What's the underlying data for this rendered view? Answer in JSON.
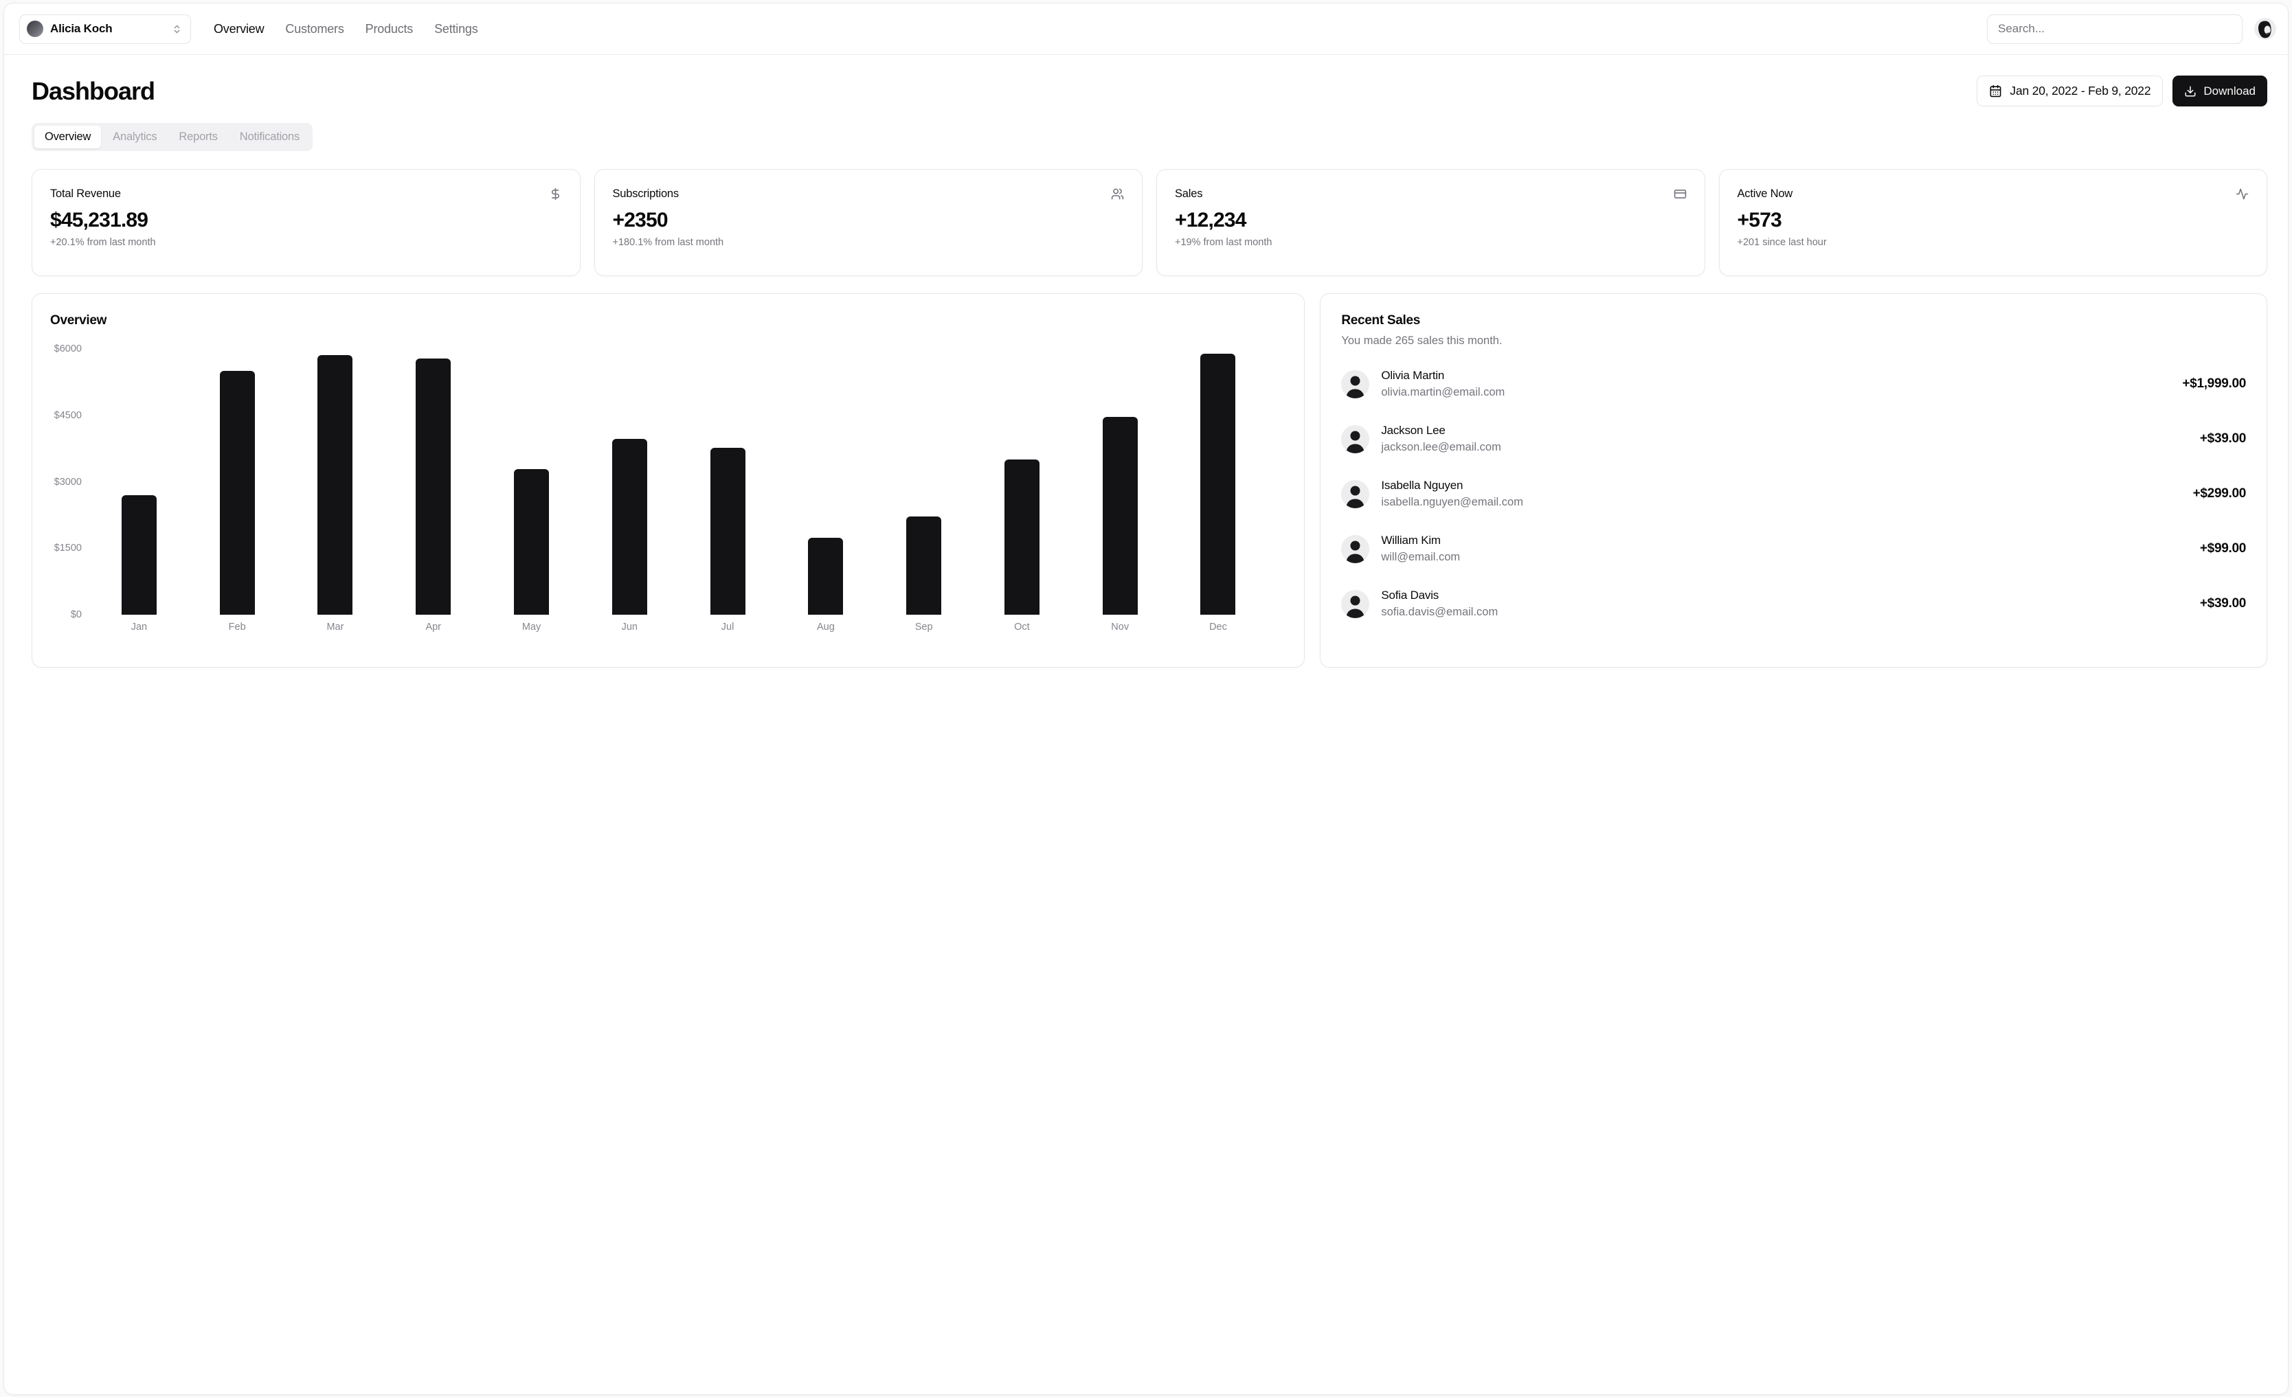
{
  "header": {
    "team_name": "Alicia Koch",
    "team_switcher_icon": "chevrons-up-down-icon",
    "nav_items": [
      {
        "label": "Overview",
        "active": true
      },
      {
        "label": "Customers",
        "active": false
      },
      {
        "label": "Products",
        "active": false
      },
      {
        "label": "Settings",
        "active": false
      }
    ],
    "search": {
      "placeholder": "Search..."
    },
    "user_avatar_icon": "user-avatar-icon"
  },
  "page": {
    "title": "Dashboard",
    "date_range": {
      "icon": "calendar-icon",
      "label": "Jan 20, 2022 - Feb 9, 2022"
    },
    "download": {
      "icon": "download-icon",
      "label": "Download"
    },
    "tabs": [
      {
        "label": "Overview",
        "active": true
      },
      {
        "label": "Analytics",
        "active": false
      },
      {
        "label": "Reports",
        "active": false
      },
      {
        "label": "Notifications",
        "active": false
      }
    ]
  },
  "stats": [
    {
      "title": "Total Revenue",
      "icon": "dollar-sign-icon",
      "value": "$45,231.89",
      "change": "+20.1% from last month"
    },
    {
      "title": "Subscriptions",
      "icon": "users-icon",
      "value": "+2350",
      "change": "+180.1% from last month"
    },
    {
      "title": "Sales",
      "icon": "credit-card-icon",
      "value": "+12,234",
      "change": "+19% from last month"
    },
    {
      "title": "Active Now",
      "icon": "activity-icon",
      "value": "+573",
      "change": "+201 since last hour"
    }
  ],
  "chart_data": {
    "type": "bar",
    "title": "Overview",
    "categories": [
      "Jan",
      "Feb",
      "Mar",
      "Apr",
      "May",
      "Jun",
      "Jul",
      "Aug",
      "Sep",
      "Oct",
      "Nov",
      "Dec"
    ],
    "values": [
      2700,
      5500,
      5860,
      5780,
      3280,
      3970,
      3760,
      1730,
      2210,
      3510,
      4460,
      5890
    ],
    "xlabel": "",
    "ylabel": "",
    "ylim": [
      0,
      6000
    ],
    "yticks": [
      0,
      1500,
      3000,
      4500,
      6000
    ],
    "ytick_prefix": "$",
    "grid": false,
    "legend": false,
    "bar_color": "#131316"
  },
  "recent_sales": {
    "title": "Recent Sales",
    "subtitle": "You made 265 sales this month.",
    "avatar_icon": "person-avatar-icon",
    "items": [
      {
        "name": "Olivia Martin",
        "email": "olivia.martin@email.com",
        "amount": "+$1,999.00"
      },
      {
        "name": "Jackson Lee",
        "email": "jackson.lee@email.com",
        "amount": "+$39.00"
      },
      {
        "name": "Isabella Nguyen",
        "email": "isabella.nguyen@email.com",
        "amount": "+$299.00"
      },
      {
        "name": "William Kim",
        "email": "will@email.com",
        "amount": "+$99.00"
      },
      {
        "name": "Sofia Davis",
        "email": "sofia.davis@email.com",
        "amount": "+$39.00"
      }
    ]
  },
  "colors": {
    "accent": "#0a0a0a",
    "muted_text": "#74747c",
    "border": "#e5e5e8",
    "page_background": "#fafafa",
    "bar": "#131316",
    "tab_background": "#f1f1f3"
  }
}
